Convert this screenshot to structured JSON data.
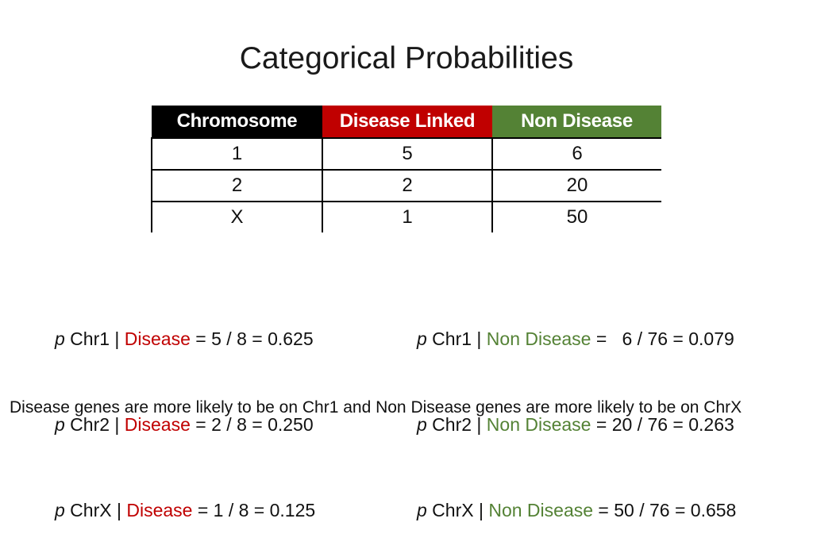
{
  "title": "Categorical Probabilities",
  "colors": {
    "chromosome_header": "#000000",
    "disease_linked": "#c00000",
    "non_disease": "#548235"
  },
  "table": {
    "headers": [
      "Chromosome",
      "Disease Linked",
      "Non Disease"
    ],
    "rows": [
      [
        "1",
        "5",
        "6"
      ],
      [
        "2",
        "2",
        "20"
      ],
      [
        "X",
        "1",
        "50"
      ]
    ]
  },
  "equations_left": [
    {
      "p": "p",
      "pre": " Chr1 | ",
      "cond": "Disease",
      "post": " = 5 / 8 = 0.625"
    },
    {
      "p": "p",
      "pre": " Chr2 | ",
      "cond": "Disease",
      "post": " = 2 / 8 = 0.250"
    },
    {
      "p": "p",
      "pre": " ChrX | ",
      "cond": "Disease",
      "post": " = 1 / 8 = 0.125"
    }
  ],
  "equations_right": [
    {
      "p": "p",
      "pre": " Chr1 | ",
      "cond": "Non Disease",
      "post": " =   6 / 76 = 0.079"
    },
    {
      "p": "p",
      "pre": " Chr2 | ",
      "cond": "Non Disease",
      "post": " = 20 / 76 = 0.263"
    },
    {
      "p": "p",
      "pre": " ChrX | ",
      "cond": "Non Disease",
      "post": " = 50 / 76 = 0.658"
    }
  ],
  "footer": "Disease genes are more likely to be on Chr1 and Non Disease genes are more likely to be on ChrX"
}
